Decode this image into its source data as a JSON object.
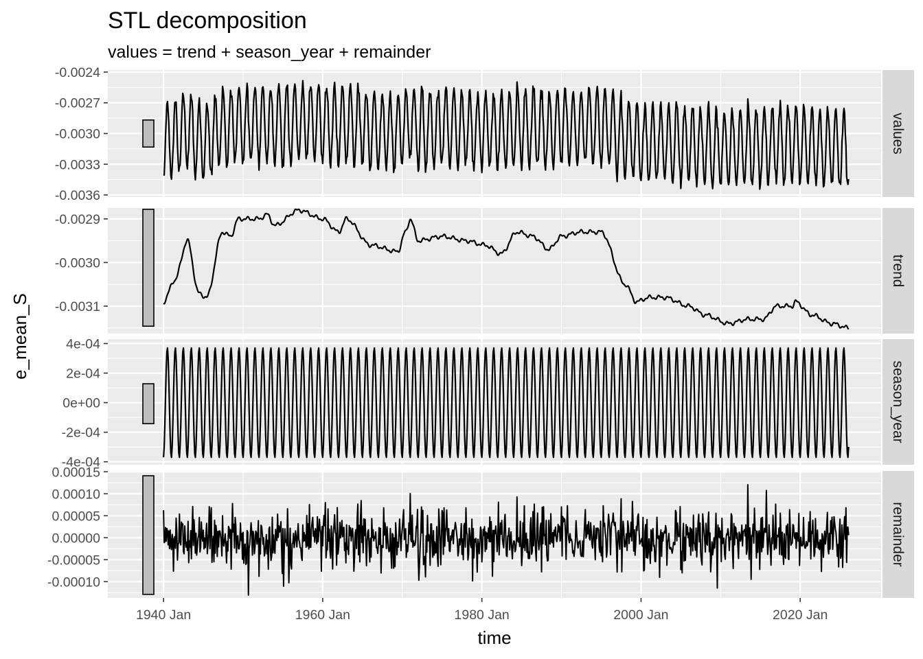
{
  "chart_data": {
    "type": "line",
    "title": "STL decomposition",
    "subtitle": "values = trend + season_year + remainder",
    "xlabel": "time",
    "ylabel": "e_mean_S",
    "x_range": [
      "1933-01",
      "2030-03"
    ],
    "x_ticks": [
      {
        "value": "1940-01",
        "label": "1940 Jan"
      },
      {
        "value": "1960-01",
        "label": "1960 Jan"
      },
      {
        "value": "1980-01",
        "label": "1980 Jan"
      },
      {
        "value": "2000-01",
        "label": "2000 Jan"
      },
      {
        "value": "2020-01",
        "label": "2020 Jan"
      }
    ],
    "data_start": "1940-01",
    "data_end": "2026-02",
    "grid": true,
    "facets": [
      {
        "name": "values",
        "ylim": [
          -0.00362,
          -0.00238
        ],
        "ticks": [
          {
            "value": -0.0024,
            "label": "-0.0024"
          },
          {
            "value": -0.0027,
            "label": "-0.0027"
          },
          {
            "value": -0.003,
            "label": "-0.0030"
          },
          {
            "value": -0.0033,
            "label": "-0.0033"
          },
          {
            "value": -0.0036,
            "label": "-0.0036"
          }
        ],
        "scale_bar": [
          -0.003132,
          -0.002868
        ]
      },
      {
        "name": "trend",
        "ylim": [
          -0.003163,
          -0.002875
        ],
        "ticks": [
          {
            "value": -0.0029,
            "label": "-0.0029"
          },
          {
            "value": -0.003,
            "label": "-0.0030"
          },
          {
            "value": -0.0031,
            "label": "-0.0031"
          }
        ],
        "scale_bar": [
          -0.003146,
          -0.002878
        ]
      },
      {
        "name": "season_year",
        "ylim": [
          -0.00042,
          0.00043
        ],
        "ticks": [
          {
            "value": 0.0004,
            "label": "4e-04"
          },
          {
            "value": 0.0002,
            "label": "2e-04"
          },
          {
            "value": 0.0,
            "label": "0e+00"
          },
          {
            "value": -0.0002,
            "label": "-2e-04"
          },
          {
            "value": -0.0004,
            "label": "-4e-04"
          }
        ],
        "scale_bar": [
          -0.000142,
          0.000128
        ]
      },
      {
        "name": "remainder",
        "ylim": [
          -0.000137,
          0.000152
        ],
        "ticks": [
          {
            "value": 0.00015,
            "label": "0.00015"
          },
          {
            "value": 0.0001,
            "label": "0.00010"
          },
          {
            "value": 5e-05,
            "label": "0.00005"
          },
          {
            "value": 0.0,
            "label": "0.00000"
          },
          {
            "value": -5e-05,
            "label": "-0.00005"
          },
          {
            "value": -0.0001,
            "label": "-0.00010"
          }
        ],
        "scale_bar": [
          -0.000129,
          0.000141
        ]
      }
    ],
    "trend_knots": [
      [
        "1940-01",
        -0.00309
      ],
      [
        "1941-06",
        -0.00304
      ],
      [
        "1943-01",
        -0.00295
      ],
      [
        "1944-06",
        -0.00307
      ],
      [
        "1945-06",
        -0.00308
      ],
      [
        "1947-06",
        -0.00293
      ],
      [
        "1948-06",
        -0.00294
      ],
      [
        "1949-06",
        -0.0029
      ],
      [
        "1952-01",
        -0.0029
      ],
      [
        "1953-01",
        -0.00289
      ],
      [
        "1954-01",
        -0.002915
      ],
      [
        "1957-01",
        -0.00288
      ],
      [
        "1960-01",
        -0.0029
      ],
      [
        "1962-01",
        -0.00293
      ],
      [
        "1963-01",
        -0.0029
      ],
      [
        "1966-01",
        -0.00296
      ],
      [
        "1969-06",
        -0.002975
      ],
      [
        "1970-06",
        -0.00293
      ],
      [
        "1971-01",
        -0.0029
      ],
      [
        "1972-01",
        -0.00295
      ],
      [
        "1975-01",
        -0.00294
      ],
      [
        "1978-01",
        -0.00295
      ],
      [
        "1980-06",
        -0.00296
      ],
      [
        "1982-06",
        -0.00298
      ],
      [
        "1984-06",
        -0.00293
      ],
      [
        "1986-06",
        -0.00294
      ],
      [
        "1988-06",
        -0.00297
      ],
      [
        "1990-01",
        -0.00294
      ],
      [
        "1992-06",
        -0.00293
      ],
      [
        "1995-01",
        -0.00293
      ],
      [
        "1998-01",
        -0.00305
      ],
      [
        "1999-06",
        -0.00309
      ],
      [
        "2001-01",
        -0.00308
      ],
      [
        "2003-01",
        -0.00308
      ],
      [
        "2006-01",
        -0.0031
      ],
      [
        "2008-01",
        -0.00312
      ],
      [
        "2011-01",
        -0.00314
      ],
      [
        "2013-06",
        -0.00313
      ],
      [
        "2015-06",
        -0.00313
      ],
      [
        "2017-01",
        -0.0031
      ],
      [
        "2019-01",
        -0.0031
      ],
      [
        "2019-06",
        -0.00309
      ],
      [
        "2021-06",
        -0.00312
      ],
      [
        "2024-01",
        -0.00314
      ],
      [
        "2026-02",
        -0.00315
      ]
    ],
    "season_amplitude": 0.00037
  }
}
